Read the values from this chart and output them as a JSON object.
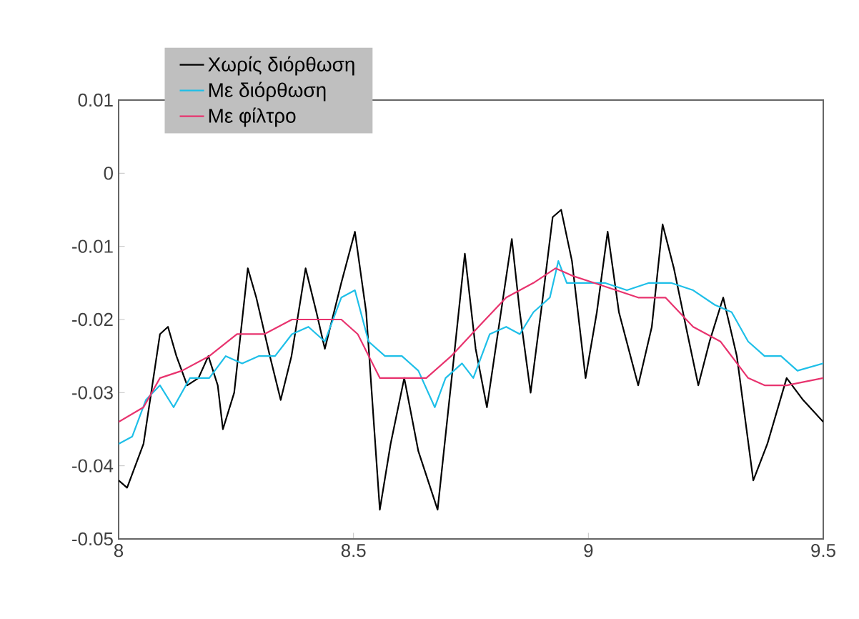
{
  "chart_data": {
    "type": "line",
    "xlim": [
      8,
      9.5
    ],
    "ylim": [
      -0.05,
      0.01
    ],
    "xticks": [
      8,
      8.5,
      9,
      9.5
    ],
    "yticks": [
      -0.05,
      -0.04,
      -0.03,
      -0.02,
      -0.01,
      0,
      0.01
    ],
    "grid": false,
    "legend": "top left",
    "marker": "none",
    "line_style": "solid",
    "series": [
      {
        "name": "Χωρίς διόρθωση",
        "color": "#000000",
        "x": [
          8.0,
          8.018,
          8.053,
          8.088,
          8.105,
          8.123,
          8.146,
          8.17,
          8.191,
          8.211,
          8.222,
          8.246,
          8.275,
          8.293,
          8.322,
          8.345,
          8.368,
          8.398,
          8.421,
          8.439,
          8.474,
          8.503,
          8.527,
          8.556,
          8.579,
          8.608,
          8.638,
          8.679,
          8.714,
          8.737,
          8.76,
          8.784,
          8.807,
          8.837,
          8.854,
          8.877,
          8.901,
          8.924,
          8.942,
          8.965,
          8.994,
          9.018,
          9.041,
          9.065,
          9.106,
          9.135,
          9.158,
          9.182,
          9.211,
          9.234,
          9.258,
          9.287,
          9.316,
          9.351,
          9.381,
          9.422,
          9.457,
          9.5
        ],
        "values": [
          -0.042,
          -0.043,
          -0.037,
          -0.022,
          -0.021,
          -0.025,
          -0.029,
          -0.028,
          -0.025,
          -0.029,
          -0.035,
          -0.03,
          -0.013,
          -0.017,
          -0.025,
          -0.031,
          -0.025,
          -0.013,
          -0.019,
          -0.024,
          -0.015,
          -0.008,
          -0.019,
          -0.046,
          -0.037,
          -0.028,
          -0.038,
          -0.046,
          -0.025,
          -0.011,
          -0.024,
          -0.032,
          -0.022,
          -0.009,
          -0.019,
          -0.03,
          -0.018,
          -0.006,
          -0.005,
          -0.012,
          -0.028,
          -0.019,
          -0.008,
          -0.019,
          -0.029,
          -0.021,
          -0.007,
          -0.013,
          -0.022,
          -0.029,
          -0.023,
          -0.017,
          -0.025,
          -0.042,
          -0.037,
          -0.028,
          -0.031,
          -0.034
        ]
      },
      {
        "name": "Με διόρθωση",
        "color": "#1ebfe8",
        "x": [
          8.0,
          8.029,
          8.058,
          8.088,
          8.117,
          8.152,
          8.193,
          8.228,
          8.263,
          8.298,
          8.333,
          8.369,
          8.404,
          8.439,
          8.474,
          8.503,
          8.532,
          8.567,
          8.603,
          8.638,
          8.673,
          8.696,
          8.731,
          8.755,
          8.79,
          8.825,
          8.854,
          8.883,
          8.918,
          8.936,
          8.954,
          8.989,
          9.035,
          9.082,
          9.129,
          9.176,
          9.223,
          9.269,
          9.305,
          9.34,
          9.375,
          9.41,
          9.445,
          9.5
        ],
        "values": [
          -0.037,
          -0.036,
          -0.031,
          -0.029,
          -0.032,
          -0.028,
          -0.028,
          -0.025,
          -0.026,
          -0.025,
          -0.025,
          -0.022,
          -0.021,
          -0.023,
          -0.017,
          -0.016,
          -0.023,
          -0.025,
          -0.025,
          -0.027,
          -0.032,
          -0.028,
          -0.026,
          -0.028,
          -0.022,
          -0.021,
          -0.022,
          -0.019,
          -0.017,
          -0.012,
          -0.015,
          -0.015,
          -0.015,
          -0.016,
          -0.015,
          -0.015,
          -0.016,
          -0.018,
          -0.019,
          -0.023,
          -0.025,
          -0.025,
          -0.027,
          -0.026
        ]
      },
      {
        "name": "Με φίλτρο",
        "color": "#e8336e",
        "x": [
          8.0,
          8.053,
          8.088,
          8.135,
          8.193,
          8.252,
          8.31,
          8.369,
          8.427,
          8.474,
          8.509,
          8.556,
          8.603,
          8.655,
          8.708,
          8.766,
          8.825,
          8.883,
          8.93,
          8.965,
          9.012,
          9.059,
          9.106,
          9.164,
          9.223,
          9.281,
          9.34,
          9.375,
          9.422,
          9.5
        ],
        "values": [
          -0.034,
          -0.032,
          -0.028,
          -0.027,
          -0.025,
          -0.022,
          -0.022,
          -0.02,
          -0.02,
          -0.02,
          -0.022,
          -0.028,
          -0.028,
          -0.028,
          -0.025,
          -0.021,
          -0.017,
          -0.015,
          -0.013,
          -0.014,
          -0.015,
          -0.016,
          -0.017,
          -0.017,
          -0.021,
          -0.023,
          -0.028,
          -0.029,
          -0.029,
          -0.028
        ]
      }
    ]
  }
}
